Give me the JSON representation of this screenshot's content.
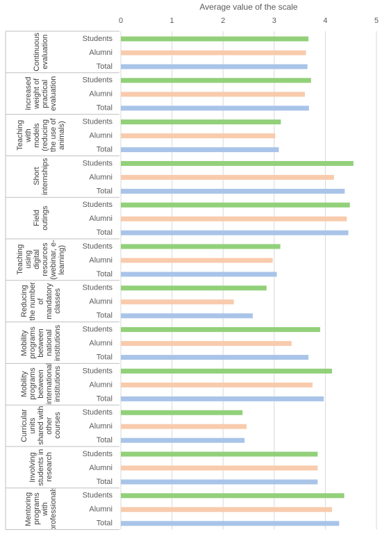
{
  "chart_data": {
    "type": "bar",
    "orientation": "horizontal",
    "xlabel": "Average value of the scale",
    "categories": [
      "Continuous evaluation",
      "Increased weight of practical evaluation",
      "Teaching with models (reducing the use of animals)",
      "Short internships",
      "Field outings",
      "Teaching using digital resources (webinar, e-learning)",
      "Reducing the number of mandatory classes",
      "Mobility programs between national institutions",
      "Mobility programs between international institutions",
      "Curricular units shared with other courses",
      "Involving students in research",
      "Mentoring programs with professionals"
    ],
    "series": [
      {
        "name": "Students",
        "color": "#92d07a",
        "values": [
          3.67,
          3.72,
          3.13,
          4.55,
          4.48,
          3.12,
          2.85,
          3.9,
          4.13,
          2.38,
          3.85,
          4.37
        ]
      },
      {
        "name": "Alumni",
        "color": "#f8cbad",
        "values": [
          3.62,
          3.6,
          3.02,
          4.17,
          4.42,
          2.97,
          2.21,
          3.34,
          3.75,
          2.46,
          3.85,
          4.13
        ]
      },
      {
        "name": "Total",
        "color": "#a9c4e8",
        "values": [
          3.65,
          3.68,
          3.09,
          4.38,
          4.45,
          3.05,
          2.58,
          3.67,
          3.97,
          2.42,
          3.85,
          4.27
        ]
      }
    ],
    "xlim": [
      0,
      5
    ],
    "xticks": [
      0,
      1,
      2,
      3,
      4,
      5
    ],
    "grid": true
  }
}
